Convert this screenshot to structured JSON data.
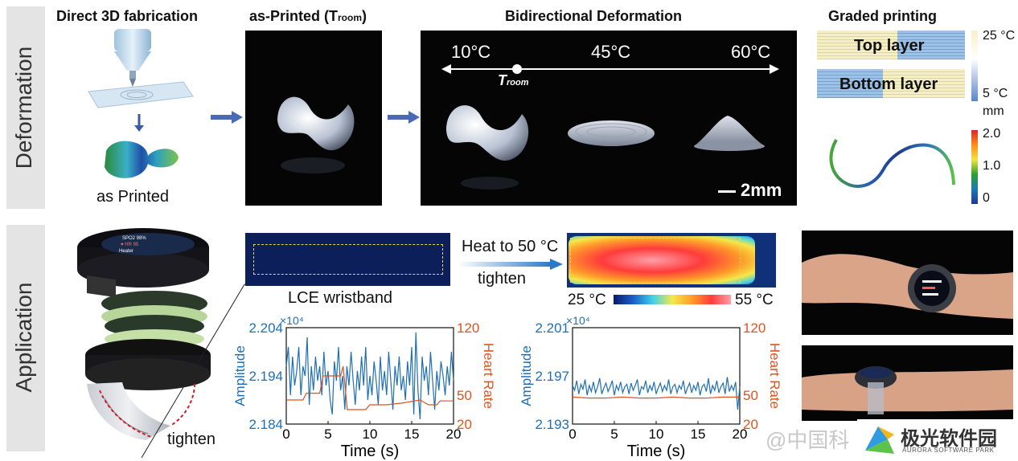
{
  "rows": {
    "top_label": "Deformation",
    "bottom_label": "Application"
  },
  "deformation": {
    "fabrication": {
      "title": "Direct 3D fabrication",
      "as_printed_label": "as Printed"
    },
    "as_printed": {
      "title_prefix": "as-Printed (T",
      "title_sub": "room",
      "title_suffix": ")"
    },
    "bidirectional": {
      "title": "Bidirectional Deformation",
      "temp_left": "10°C",
      "temp_mid": "45°C",
      "temp_right": "60°C",
      "troom_main": "T",
      "troom_sub": "room",
      "scale_bar": "2mm"
    },
    "graded": {
      "title": "Graded printing",
      "top_layer": "Top layer",
      "bottom_layer": "Bottom layer",
      "temp_scale_max": "25 °C",
      "temp_scale_min": "5 °C",
      "temp_scale_colors": [
        "#f7f0c8",
        "#ffffff",
        "#5a86c8"
      ],
      "disp_unit": "mm",
      "disp_ticks": [
        "2.0",
        "1.0",
        "0"
      ],
      "disp_colors": [
        "#d62728",
        "#ff8c1a",
        "#f0e442",
        "#2ca02c",
        "#1f77b4",
        "#1f3b8f"
      ]
    }
  },
  "application": {
    "tighten_label": "tighten",
    "watch_screen": {
      "line1": "SPO2  98%",
      "line2": "♥ HR  95",
      "line3": "Heater"
    },
    "wristband_label": "LCE wristband",
    "heat_label": "Heat to 50 °C",
    "heat_tighten": "tighten",
    "thermal_scale_min": "25 °C",
    "thermal_scale_max": "55 °C",
    "thermal_colors": [
      "#0a1b6e",
      "#1b5fc8",
      "#3fd0e8",
      "#f5e84a",
      "#ff9d2a",
      "#ff3b3b",
      "#ff9fa8"
    ]
  },
  "chart_data": [
    {
      "type": "line",
      "title": "",
      "xlabel": "Time (s)",
      "ylabel": "Amplitude",
      "ylabel_right": "Heart Rate",
      "y_multiplier": "×10⁴",
      "xlim": [
        0,
        20
      ],
      "ylim": [
        2.184,
        2.204
      ],
      "ylim_right": [
        20,
        120
      ],
      "x_ticks": [
        "0",
        "5",
        "10",
        "15",
        "20"
      ],
      "y_ticks": [
        "2.204",
        "2.194",
        "2.184"
      ],
      "y_right_ticks": [
        "120",
        "50",
        "20"
      ],
      "series": [
        {
          "axis": "left",
          "color": "#1f6fb4",
          "x": [
            0,
            0.25,
            0.5,
            0.75,
            1,
            1.25,
            1.5,
            1.75,
            2,
            2.25,
            2.5,
            2.75,
            3,
            3.25,
            3.5,
            3.75,
            4,
            4.25,
            4.5,
            4.75,
            5,
            5.25,
            5.5,
            5.75,
            6,
            6.25,
            6.5,
            6.75,
            7,
            7.25,
            7.5,
            7.75,
            8,
            8.25,
            8.5,
            8.75,
            9,
            9.25,
            9.5,
            9.75,
            10,
            10.25,
            10.5,
            10.75,
            11,
            11.25,
            11.5,
            11.75,
            12,
            12.25,
            12.5,
            12.75,
            13,
            13.25,
            13.5,
            13.75,
            14,
            14.25,
            14.5,
            14.75,
            15,
            15.25,
            15.5,
            15.75,
            16,
            16.25,
            16.5,
            16.75,
            17,
            17.25,
            17.5,
            17.75,
            18,
            18.25,
            18.5,
            18.75,
            19,
            19.25,
            19.5,
            19.75,
            20
          ],
          "values": [
            2.196,
            2.2,
            2.19,
            2.198,
            2.192,
            2.195,
            2.2,
            2.19,
            2.196,
            2.194,
            2.202,
            2.188,
            2.196,
            2.191,
            2.198,
            2.193,
            2.196,
            2.19,
            2.199,
            2.192,
            2.195,
            2.189,
            2.186,
            2.197,
            2.193,
            2.2,
            2.191,
            2.194,
            2.187,
            2.196,
            2.192,
            2.199,
            2.193,
            2.188,
            2.195,
            2.191,
            2.198,
            2.192,
            2.2,
            2.189,
            2.194,
            2.19,
            2.197,
            2.193,
            2.188,
            2.198,
            2.191,
            2.195,
            2.19,
            2.199,
            2.193,
            2.187,
            2.196,
            2.192,
            2.198,
            2.191,
            2.194,
            2.189,
            2.197,
            2.192,
            2.2,
            2.186,
            2.203,
            2.191,
            2.185,
            2.198,
            2.193,
            2.196,
            2.19,
            2.199,
            2.193,
            2.187,
            2.195,
            2.191,
            2.197,
            2.194,
            2.19,
            2.196,
            2.192,
            2.199,
            2.193
          ]
        },
        {
          "axis": "right",
          "color": "#e0521f",
          "x": [
            0,
            2,
            2.4,
            4,
            4.4,
            6.5,
            6.8,
            7.3,
            9.5,
            10,
            12,
            14,
            16,
            17,
            18,
            18.4,
            20
          ],
          "values": [
            45,
            45,
            52,
            52,
            70,
            70,
            80,
            35,
            35,
            40,
            40,
            42,
            45,
            40,
            40,
            44,
            44
          ]
        }
      ]
    },
    {
      "type": "line",
      "title": "",
      "xlabel": "Time (s)",
      "ylabel": "Amplitude",
      "ylabel_right": "Heart Rate",
      "y_multiplier": "×10⁴",
      "xlim": [
        0,
        20
      ],
      "ylim": [
        2.193,
        2.201
      ],
      "ylim_right": [
        20,
        120
      ],
      "x_ticks": [
        "0",
        "5",
        "10",
        "15",
        "20"
      ],
      "y_ticks": [
        "2.201",
        "2.197",
        "2.193"
      ],
      "y_right_ticks": [
        "120",
        "50",
        "20"
      ],
      "series": [
        {
          "axis": "left",
          "color": "#1f6fb4",
          "x": [
            0,
            0.25,
            0.5,
            0.75,
            1,
            1.25,
            1.5,
            1.75,
            2,
            2.25,
            2.5,
            2.75,
            3,
            3.25,
            3.5,
            3.75,
            4,
            4.25,
            4.5,
            4.75,
            5,
            5.25,
            5.5,
            5.75,
            6,
            6.25,
            6.5,
            6.75,
            7,
            7.25,
            7.5,
            7.75,
            8,
            8.25,
            8.5,
            8.75,
            9,
            9.25,
            9.5,
            9.75,
            10,
            10.25,
            10.5,
            10.75,
            11,
            11.25,
            11.5,
            11.75,
            12,
            12.25,
            12.5,
            12.75,
            13,
            13.25,
            13.5,
            13.75,
            14,
            14.25,
            14.5,
            14.75,
            15,
            15.25,
            15.5,
            15.75,
            16,
            16.25,
            16.5,
            16.75,
            17,
            17.25,
            17.5,
            17.75,
            18,
            18.25,
            18.5,
            18.75,
            19,
            19.25,
            19.5,
            19.75,
            20
          ],
          "values": [
            2.1962,
            2.1958,
            2.1966,
            2.1955,
            2.1963,
            2.1959,
            2.1967,
            2.1954,
            2.1962,
            2.1957,
            2.1965,
            2.1956,
            2.1961,
            2.1968,
            2.1955,
            2.196,
            2.1964,
            2.1957,
            2.1961,
            2.1966,
            2.1954,
            2.1962,
            2.1958,
            2.1965,
            2.1956,
            2.1961,
            2.1963,
            2.1955,
            2.1964,
            2.1958,
            2.1962,
            2.1967,
            2.1954,
            2.1961,
            2.1959,
            2.1966,
            2.1956,
            2.1962,
            2.1958,
            2.1965,
            2.1955,
            2.196,
            2.1964,
            2.1957,
            2.1962,
            2.1958,
            2.1967,
            2.1955,
            2.1961,
            2.1963,
            2.1956,
            2.1962,
            2.1959,
            2.1966,
            2.1955,
            2.196,
            2.1964,
            2.1956,
            2.1962,
            2.1958,
            2.1965,
            2.1954,
            2.1961,
            2.1963,
            2.1957,
            2.1968,
            2.1955,
            2.1962,
            2.1958,
            2.1966,
            2.1956,
            2.1961,
            2.1964,
            2.1955,
            2.1969,
            2.1957,
            2.1962,
            2.1958,
            2.1965,
            2.1942,
            2.1961
          ]
        },
        {
          "axis": "right",
          "color": "#e0521f",
          "x": [
            0,
            2,
            4,
            6,
            8,
            10,
            12,
            14,
            16,
            18,
            20
          ],
          "values": [
            48,
            47,
            47,
            48,
            47,
            47,
            48,
            47,
            47,
            48,
            48
          ]
        }
      ]
    }
  ],
  "watermark": {
    "social_text": "@中国科",
    "brand_text": "极光软件园",
    "brand_sub": "AURORA SOFTWARE PARK"
  }
}
